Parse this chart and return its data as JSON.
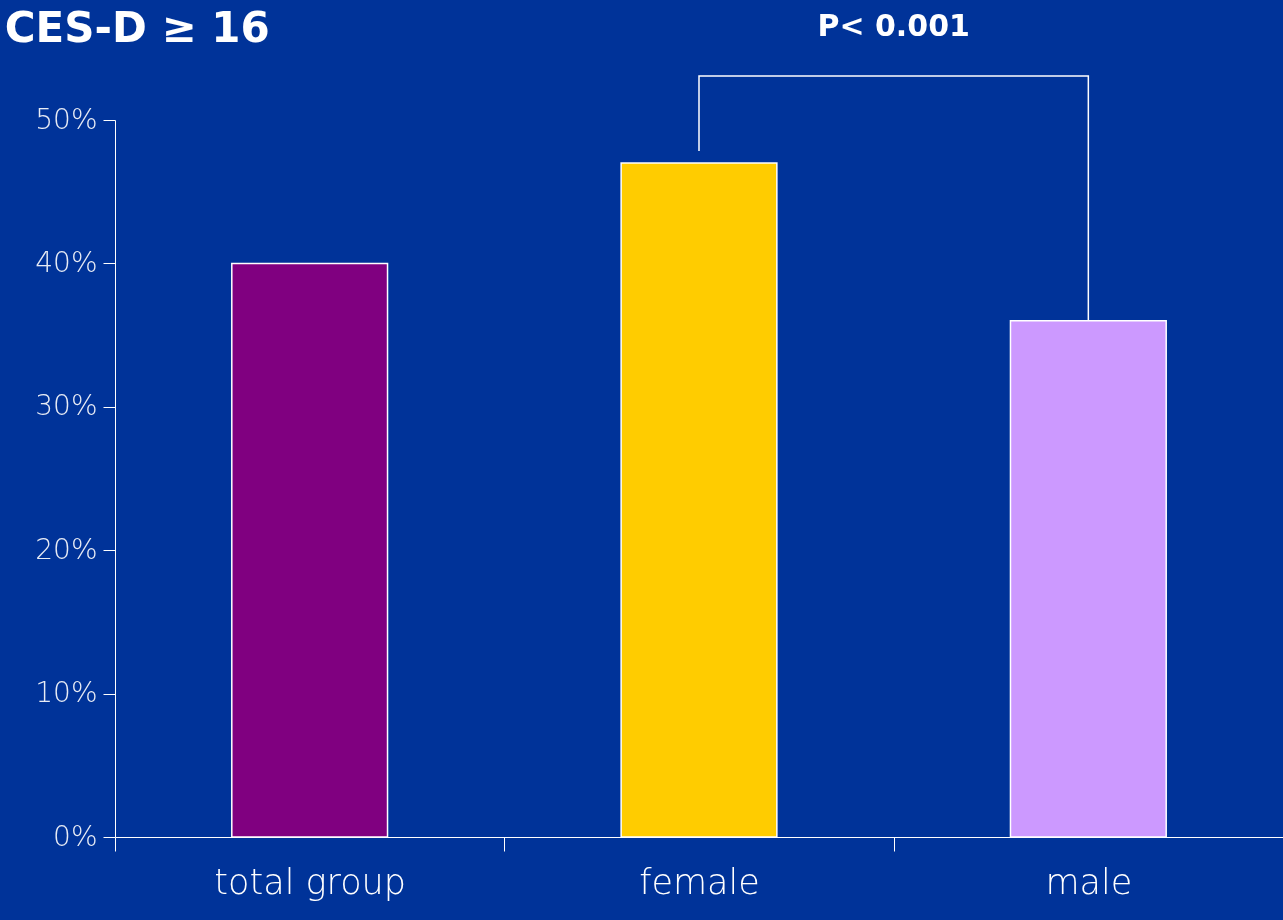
{
  "chart_data": {
    "type": "bar",
    "title": "CES-D ≥ 16",
    "categories": [
      "total group",
      "female",
      "male"
    ],
    "values": [
      40,
      47,
      36
    ],
    "colors": [
      "#800080",
      "#ffcc00",
      "#cc99ff"
    ],
    "ylim": [
      0,
      50
    ],
    "yticks": [
      {
        "value": 0,
        "label": "0%"
      },
      {
        "value": 10,
        "label": "10%"
      },
      {
        "value": 20,
        "label": "20%"
      },
      {
        "value": 30,
        "label": "30%"
      },
      {
        "value": 40,
        "label": "40%"
      },
      {
        "value": 50,
        "label": "50%"
      }
    ],
    "grid": false,
    "legend": false,
    "annotations": [
      "P< 0.001"
    ]
  }
}
